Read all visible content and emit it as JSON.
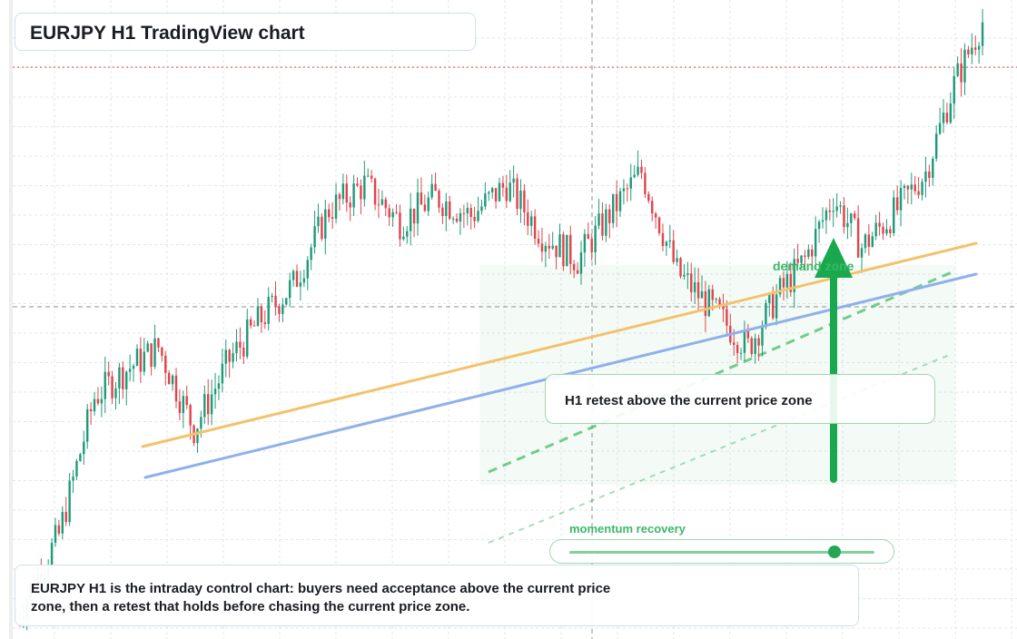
{
  "header": {
    "title": "EURJPY H1 TradingView chart"
  },
  "annotations": {
    "zone_label": "demand zone",
    "retest_note": "H1 retest above the current price zone",
    "momentum_label": "momentum recovery",
    "momentum_level": 0.87,
    "caption": "EURJPY H1 is the intraday control chart: buyers need acceptance above the current price zone, then a retest that holds before chasing the current price zone."
  },
  "colors": {
    "bull": "#1f9b7a",
    "bear": "#e0444e",
    "trend_orange": "#f3c26b",
    "trend_blue": "#8fb0ea",
    "zone_green": "#3cb767",
    "arrow_green": "#1aa84f",
    "grid": "#e3e6ea",
    "crosshair": "#8b8f96",
    "reference_line": "#e0444e"
  },
  "chart_data": {
    "type": "candlestick",
    "symbol": "EURJPY",
    "timeframe": "H1",
    "title": "EURJPY H1 TradingView chart",
    "price_scale": "relative (no axis labels shown)",
    "ylim": [
      0,
      100
    ],
    "grid": true,
    "candles": []
  }
}
